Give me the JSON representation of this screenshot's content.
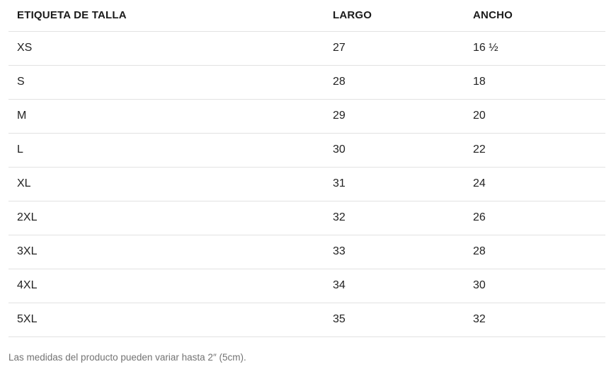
{
  "table": {
    "columns": {
      "label": "ETIQUETA DE TALLA",
      "largo": "LARGO",
      "ancho": "ANCHO"
    },
    "rows": [
      {
        "label": "XS",
        "largo": "27",
        "ancho": "16 ½"
      },
      {
        "label": "S",
        "largo": "28",
        "ancho": "18"
      },
      {
        "label": "M",
        "largo": "29",
        "ancho": "20"
      },
      {
        "label": "L",
        "largo": "30",
        "ancho": "22"
      },
      {
        "label": "XL",
        "largo": "31",
        "ancho": "24"
      },
      {
        "label": "2XL",
        "largo": "32",
        "ancho": "26"
      },
      {
        "label": "3XL",
        "largo": "33",
        "ancho": "28"
      },
      {
        "label": "4XL",
        "largo": "34",
        "ancho": "30"
      },
      {
        "label": "5XL",
        "largo": "35",
        "ancho": "32"
      }
    ]
  },
  "footnote": "Las medidas del producto pueden variar hasta 2″ (5cm).",
  "colors": {
    "text": "#1f1f1f",
    "divider": "#e2e2e2",
    "footnote_text": "#737373",
    "background": "#ffffff"
  }
}
